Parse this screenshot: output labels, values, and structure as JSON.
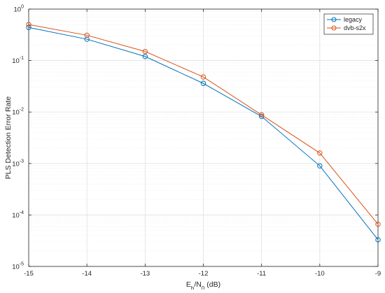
{
  "chart_data": {
    "type": "line",
    "title": "",
    "xlabel": "E_b/N_0 (dB)",
    "ylabel": "PLS Detection Error Rate",
    "x": [
      -15,
      -14,
      -13,
      -12,
      -11,
      -10,
      -9
    ],
    "xlim": [
      -15,
      -9
    ],
    "ylim": [
      1e-05,
      1
    ],
    "yscale": "log",
    "grid": true,
    "legend_position": "top-right",
    "x_tick_labels": [
      "-15",
      "-14",
      "-13",
      "-12",
      "-11",
      "-10",
      "-9"
    ],
    "y_tick_labels": [
      {
        "base": "10",
        "exp": "-5",
        "value": 1e-05
      },
      {
        "base": "10",
        "exp": "-4",
        "value": 0.0001
      },
      {
        "base": "10",
        "exp": "-3",
        "value": 0.001
      },
      {
        "base": "10",
        "exp": "-2",
        "value": 0.01
      },
      {
        "base": "10",
        "exp": "-1",
        "value": 0.1
      },
      {
        "base": "10",
        "exp": "0",
        "value": 1
      }
    ],
    "series": [
      {
        "name": "legacy",
        "color": "#0072BD",
        "marker": "circle",
        "values": [
          0.44,
          0.26,
          0.12,
          0.036,
          0.0082,
          0.0009,
          3.3e-05
        ]
      },
      {
        "name": "dvb-s2x",
        "color": "#D95319",
        "marker": "circle",
        "values": [
          0.5,
          0.31,
          0.15,
          0.048,
          0.0088,
          0.0016,
          6.6e-05
        ]
      }
    ]
  }
}
